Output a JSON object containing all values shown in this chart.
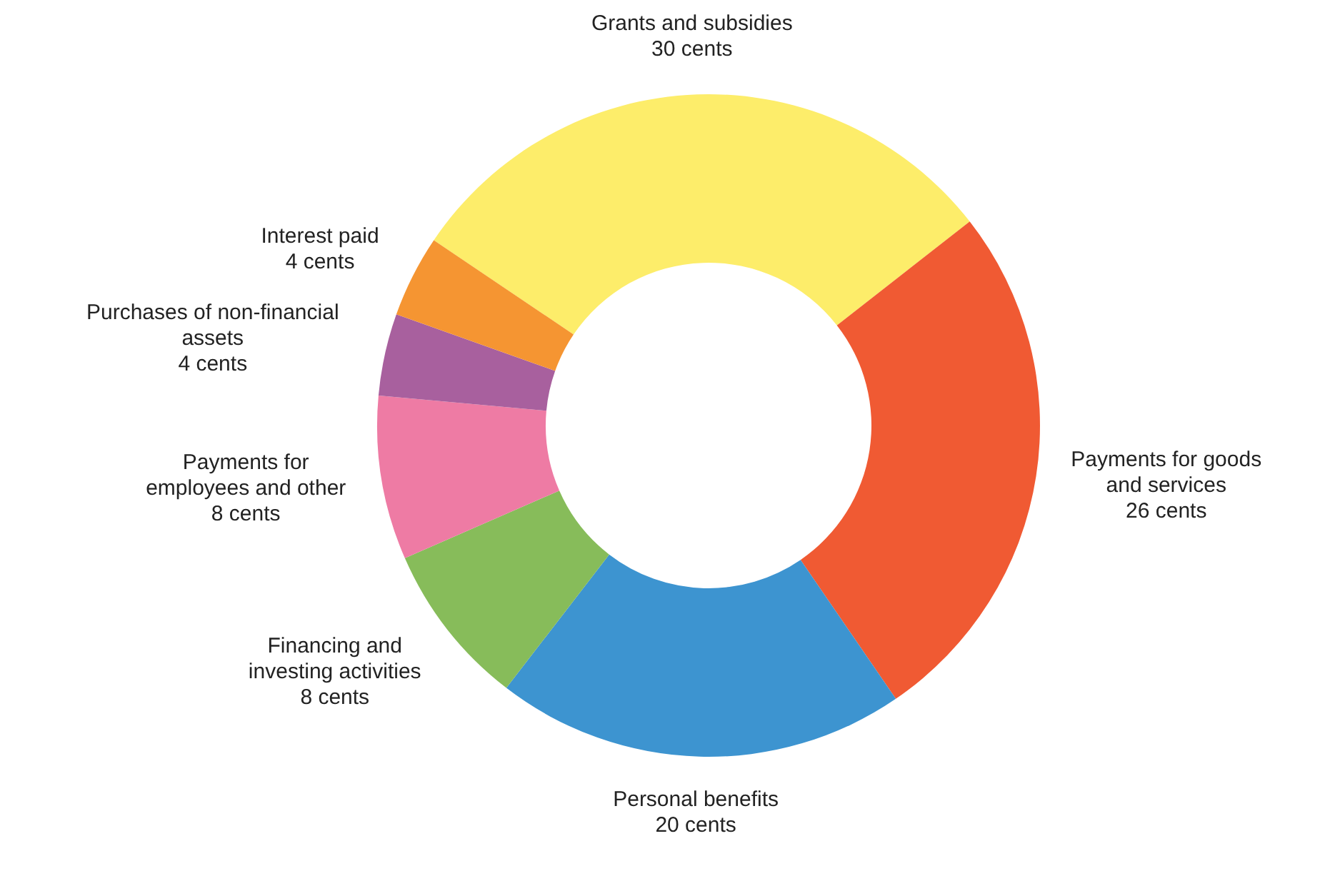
{
  "chart_data": {
    "type": "donut",
    "categories": [
      "Grants and subsidies",
      "Payments for goods\nand services",
      "Personal benefits",
      "Financing and\ninvesting activities",
      "Payments for\nemployees and other",
      "Purchases of non-financial\nassets",
      "Interest paid"
    ],
    "values": [
      30,
      26,
      20,
      8,
      8,
      4,
      4
    ],
    "value_labels": [
      "30 cents",
      "26 cents",
      "20 cents",
      "8 cents",
      "8 cents",
      "4 cents",
      "4 cents"
    ],
    "colors": [
      "#fded6a",
      "#f05a33",
      "#3d94d0",
      "#87bc5a",
      "#ee7ba4",
      "#a8609e",
      "#f59532"
    ]
  }
}
